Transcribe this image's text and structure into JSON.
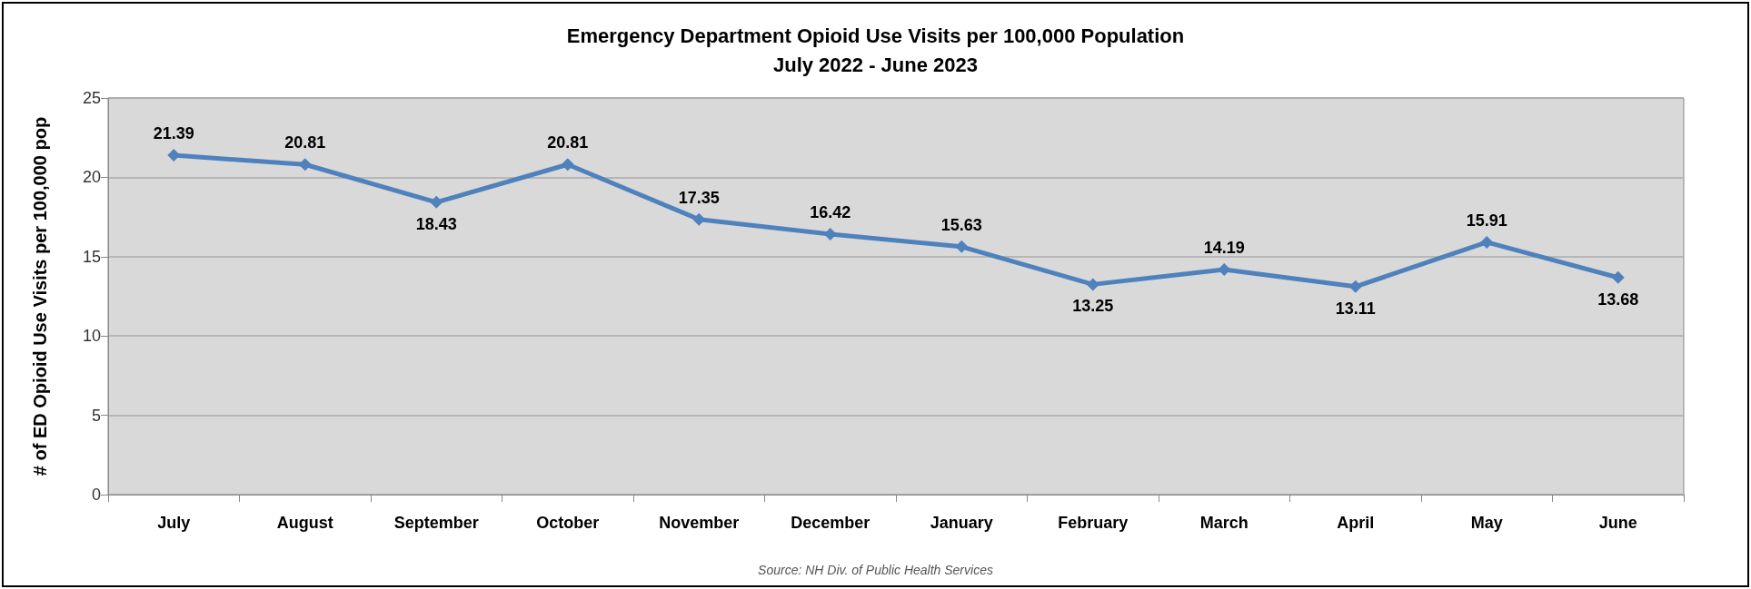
{
  "chart_data": {
    "type": "line",
    "title": "Emergency Department Opioid Use Visits per 100,000 Population",
    "subtitle": "July 2022 - June 2023",
    "ylabel": "# of ED Opioid Use Visits per 100,000 pop",
    "categories": [
      "July",
      "August",
      "September",
      "October",
      "November",
      "December",
      "January",
      "February",
      "March",
      "April",
      "May",
      "June"
    ],
    "series": [
      {
        "color": "#4f81bd",
        "values": [
          21.39,
          20.81,
          18.43,
          20.81,
          17.35,
          16.42,
          15.63,
          13.25,
          14.19,
          13.11,
          15.91,
          13.68
        ]
      }
    ],
    "ylim": [
      0,
      25
    ],
    "yticks": [
      0,
      5,
      10,
      15,
      20,
      25
    ],
    "grid": "y",
    "marker": "diamond",
    "line_style": "solid",
    "data_labels": true,
    "annotations": [
      "Source: NH Div. of Public Health Services"
    ]
  }
}
